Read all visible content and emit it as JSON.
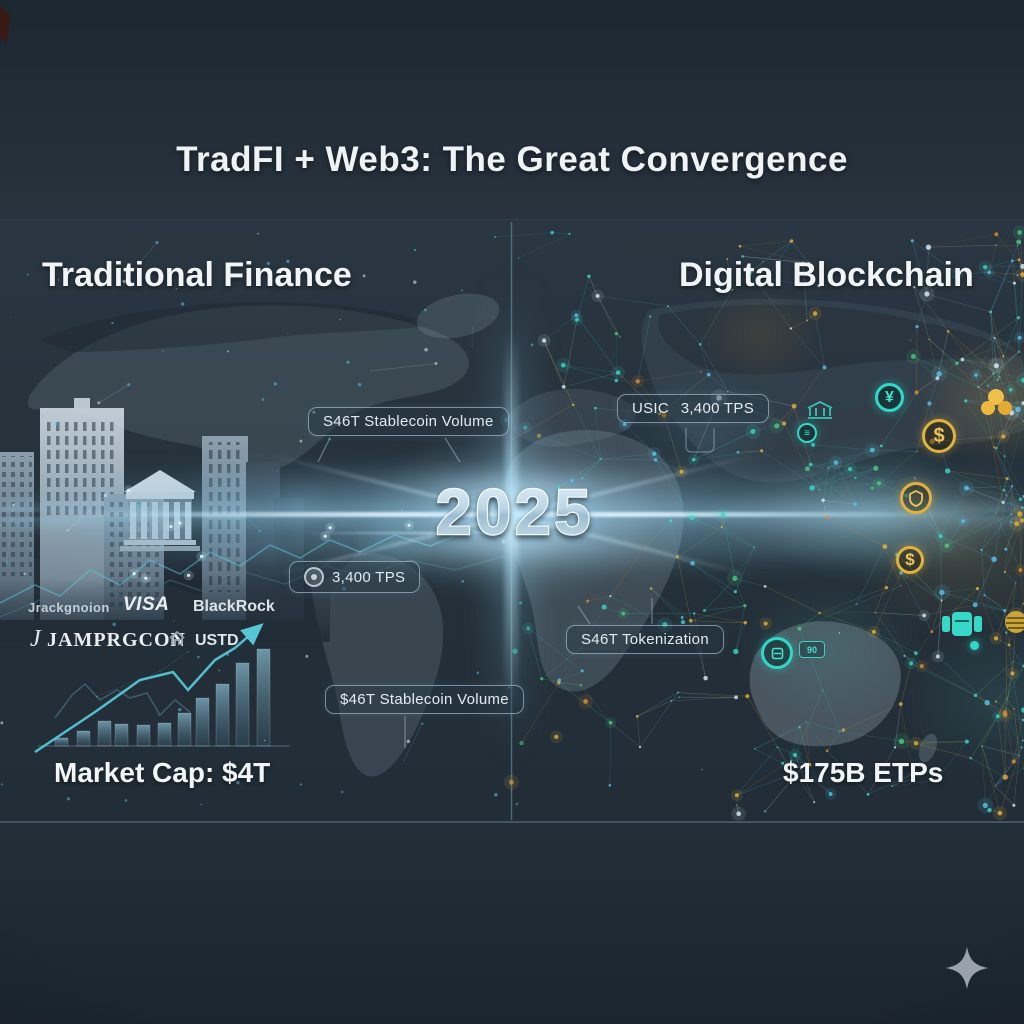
{
  "title": "TradFI + Web3: The Great Convergence",
  "center": {
    "year": "2025"
  },
  "left": {
    "heading": "Traditional Finance",
    "pill_stablecoin_top": "S46T Stablecoin Volume",
    "pill_tps": "3,400 TPS",
    "pill_stablecoin_bottom": "$46T Stablecoin Volume",
    "logos": {
      "brand1": "Jrackgnoion",
      "brand2": "VISA",
      "brand3": "BlackRock",
      "brand4_initial": "J",
      "brand4": "JAMPRGCON",
      "brand5": "USTD"
    },
    "stat": "Market Cap: $4T"
  },
  "right": {
    "heading": "Digital Blockchain",
    "pill_usic": "USIC",
    "pill_usic_tps": "3,400 TPS",
    "pill_tokenization": "S46T Tokenization",
    "stat": "$175B ETPs",
    "coin_yen": "¥",
    "coin_dollar": "$",
    "coin_dollar2": "$",
    "badge_90": "90"
  },
  "colors": {
    "accent_teal": "#2fd8c8",
    "accent_gold": "#e0b23c",
    "beam_blue": "#cfeeff",
    "text_primary": "#f0f5f8"
  }
}
